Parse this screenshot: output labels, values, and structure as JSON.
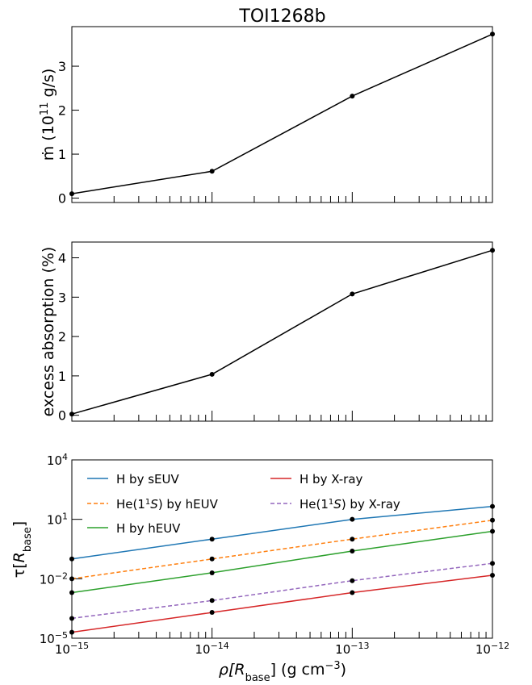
{
  "figure": {
    "title": "TOI1268b"
  },
  "chart_data": [
    {
      "type": "line",
      "x": [
        1e-15,
        1e-14,
        1e-13,
        1e-12
      ],
      "series": [
        {
          "values": [
            0.1,
            0.61,
            2.32,
            3.73
          ],
          "color": "#000000",
          "style": "solid",
          "markers": true
        }
      ],
      "xscale": "log",
      "xlim": [
        1e-15,
        1e-12
      ],
      "ylim": [
        -0.1,
        3.9
      ],
      "yticks": [
        0,
        1,
        2,
        3
      ],
      "ytick_labels": [
        "0",
        "1",
        "2",
        "3"
      ],
      "ylabel": "ṁ (10¹¹ g/s)",
      "ylabel_parts": {
        "main": "ṁ (10",
        "sup": "11",
        "tail": " g/s)"
      },
      "grid": false
    },
    {
      "type": "line",
      "x": [
        1e-15,
        1e-14,
        1e-13,
        1e-12
      ],
      "series": [
        {
          "values": [
            0.03,
            1.04,
            3.08,
            4.19
          ],
          "color": "#000000",
          "style": "solid",
          "markers": true
        }
      ],
      "xscale": "log",
      "xlim": [
        1e-15,
        1e-12
      ],
      "ylim": [
        -0.15,
        4.4
      ],
      "yticks": [
        0,
        1,
        2,
        3,
        4
      ],
      "ytick_labels": [
        "0",
        "1",
        "2",
        "3",
        "4"
      ],
      "ylabel": "excess absorption (%)",
      "grid": false
    },
    {
      "type": "line",
      "x": [
        1e-15,
        1e-14,
        1e-13,
        1e-12
      ],
      "xscale": "log",
      "yscale": "log",
      "xlim": [
        1e-15,
        1e-12
      ],
      "ylim": [
        1e-05,
        10000.0
      ],
      "xtick_labels": [
        {
          "base": "10",
          "exp": "−15"
        },
        {
          "base": "10",
          "exp": "−14"
        },
        {
          "base": "10",
          "exp": "−13"
        },
        {
          "base": "10",
          "exp": "−12"
        }
      ],
      "ytick_labels": [
        {
          "base": "10",
          "exp": "−5"
        },
        {
          "base": "10",
          "exp": "−2"
        },
        {
          "base": "10",
          "exp": "1"
        },
        {
          "base": "10",
          "exp": "4"
        }
      ],
      "ylabel": "τ[R_base]",
      "ylabel_parts": {
        "main": "τ[",
        "italic": "R",
        "sub": "base",
        "tail": "]"
      },
      "xlabel": "ρ[R_base] (g cm⁻³)",
      "xlabel_parts": {
        "main": "ρ[",
        "italic": "R",
        "sub": "base",
        "mid": "] (g cm",
        "sup": "−3",
        "tail": ")"
      },
      "legend_position": "top",
      "grid": false,
      "series": [
        {
          "name": "H by sEUV",
          "values": [
            0.1,
            1.0,
            10.0,
            45.0
          ],
          "color": "#1f77b4",
          "style": "solid"
        },
        {
          "name": "He(1¹S) by hEUV",
          "name_parts": {
            "main": "He(1",
            "sup": "1",
            "italic": "S",
            "tail": ") by hEUV"
          },
          "values": [
            0.01,
            0.1,
            1.0,
            9.0
          ],
          "color": "#ff7f0e",
          "style": "dashed"
        },
        {
          "name": "H by hEUV",
          "values": [
            0.002,
            0.02,
            0.25,
            2.5
          ],
          "color": "#2ca02c",
          "style": "solid"
        },
        {
          "name": "H by X-ray",
          "values": [
            2e-05,
            0.0002,
            0.002,
            0.015
          ],
          "color": "#d62728",
          "style": "solid"
        },
        {
          "name": "He(1¹S) by X-ray",
          "name_parts": {
            "main": "He(1",
            "sup": "1",
            "italic": "S",
            "tail": ") by X-ray"
          },
          "values": [
            0.0001,
            0.0008,
            0.008,
            0.06
          ],
          "color": "#9467bd",
          "style": "dashed"
        }
      ]
    }
  ]
}
